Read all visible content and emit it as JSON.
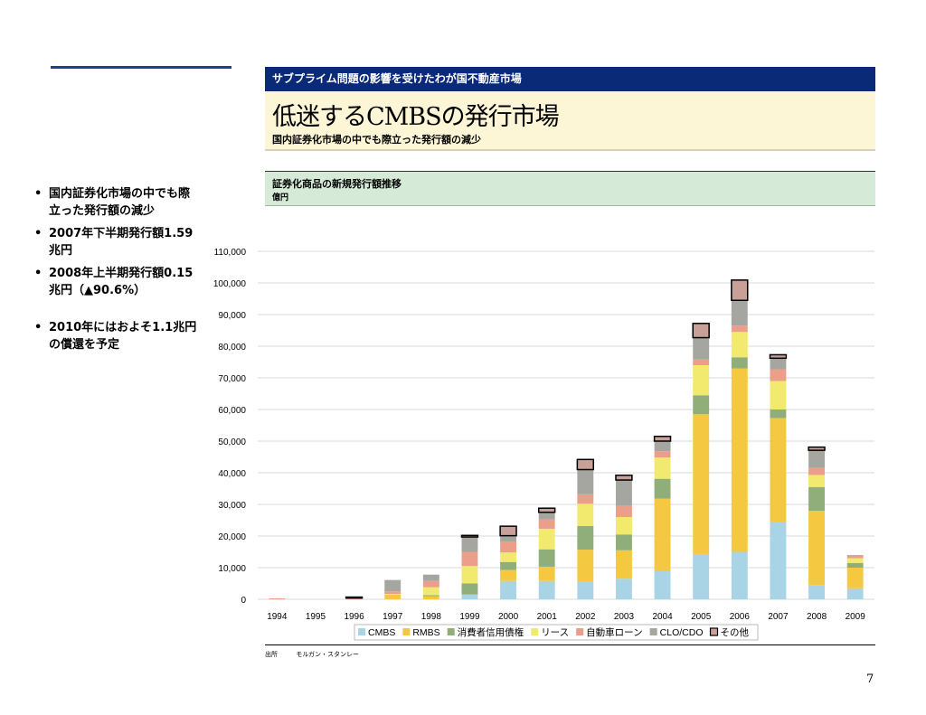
{
  "header": {
    "banner": "サブプライム問題の影響を受けたわが国不動産市場",
    "title": "低迷するCMBSの発行市場",
    "subtitle": "国内証券化市場の中でも際立った発行額の減少"
  },
  "chart_header": {
    "title": "証券化商品の新規発行額推移",
    "unit": "億円"
  },
  "bullets": [
    "国内証券化市場の中でも際立った発行額の減少",
    "2007年下半期発行額1.59兆円",
    "2008年上半期発行額0.15兆円（▲90.6%）",
    "2010年にはおよそ1.1兆円の償還を予定"
  ],
  "source": {
    "label": "出所",
    "text": "モルガン・スタンレー"
  },
  "page_number": "7",
  "chart_data": {
    "type": "bar",
    "stacked": true,
    "categories": [
      "1994",
      "1995",
      "1996",
      "1997",
      "1998",
      "1999",
      "2000",
      "2001",
      "2002",
      "2003",
      "2004",
      "2005",
      "2006",
      "2007",
      "2008",
      "2009"
    ],
    "ylim": [
      0,
      110000
    ],
    "yticks": [
      0,
      10000,
      20000,
      30000,
      40000,
      50000,
      60000,
      70000,
      80000,
      90000,
      100000,
      110000
    ],
    "ytick_labels": [
      "0",
      "10,000",
      "20,000",
      "30,000",
      "40,000",
      "50,000",
      "60,000",
      "70,000",
      "80,000",
      "90,000",
      "100,000",
      "110,000"
    ],
    "grid": true,
    "legend_position": "bottom",
    "series": [
      {
        "name": "CMBS",
        "color": "#a8d4e6",
        "values": [
          0,
          0,
          0,
          0,
          0,
          1500,
          5800,
          5800,
          5700,
          6500,
          9000,
          14300,
          15000,
          24300,
          4500,
          3500
        ]
      },
      {
        "name": "RMBS",
        "color": "#f5c842",
        "values": [
          0,
          0,
          0,
          1500,
          1000,
          0,
          3500,
          4500,
          10000,
          9000,
          22800,
          44200,
          58000,
          33000,
          23500,
          6500
        ]
      },
      {
        "name": "消費者信用債権",
        "color": "#8fae7a",
        "values": [
          0,
          0,
          0,
          0,
          300,
          3500,
          2500,
          5500,
          7500,
          5000,
          6300,
          6000,
          3500,
          2700,
          7500,
          1500
        ]
      },
      {
        "name": "リース",
        "color": "#f2ea6e",
        "values": [
          0,
          0,
          0,
          200,
          2500,
          5500,
          3000,
          6500,
          7000,
          5500,
          6700,
          9500,
          8000,
          9000,
          3800,
          1500
        ]
      },
      {
        "name": "自動車ローン",
        "color": "#eb9e8a",
        "values": [
          300,
          0,
          400,
          800,
          2000,
          4500,
          3500,
          3000,
          3000,
          3500,
          2000,
          2000,
          2000,
          3700,
          2300,
          800
        ]
      },
      {
        "name": "CLO/CDO",
        "color": "#a6a6a0",
        "values": [
          0,
          0,
          0,
          3600,
          2000,
          4700,
          1800,
          2200,
          7800,
          8200,
          3200,
          6700,
          8000,
          3500,
          5500,
          200
        ]
      },
      {
        "name": "その他",
        "color": "#c9a098",
        "values": [
          0,
          0,
          300,
          0,
          0,
          500,
          3000,
          1300,
          3200,
          1500,
          1500,
          4500,
          6400,
          1100,
          1000,
          0
        ]
      }
    ]
  }
}
